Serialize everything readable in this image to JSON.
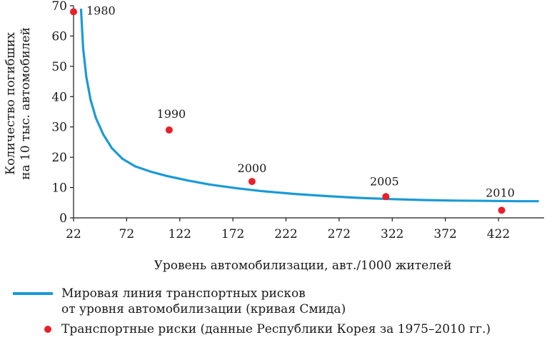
{
  "colors": {
    "curve": "#1a9ad6",
    "points": "#e8202a",
    "axis": "#1a1a1a"
  },
  "chart_data": {
    "type": "scatter",
    "xlabel": "Уровень автомобилизации, авт./1000 жителей",
    "ylabel_line1": "Количество погибших",
    "ylabel_line2": "на 10 тыс. автомобилей",
    "xlim": [
      22,
      465
    ],
    "ylim": [
      0,
      70
    ],
    "xticks": [
      22,
      72,
      122,
      172,
      222,
      272,
      322,
      372,
      422
    ],
    "yticks": [
      0,
      10,
      20,
      30,
      40,
      50,
      60,
      70
    ],
    "series": [
      {
        "name": "Мировая линия транспортных рисков от уровня автомобилизации (кривая Смида)",
        "kind": "line",
        "x": [
          29,
          31,
          34,
          38,
          43,
          50,
          58,
          68,
          80,
          95,
          110,
          130,
          150,
          175,
          200,
          230,
          260,
          290,
          320,
          350,
          380,
          410,
          440,
          460
        ],
        "y": [
          69,
          56,
          46.5,
          39,
          33,
          27.5,
          23,
          19.5,
          17,
          15.2,
          13.8,
          12.3,
          11,
          9.8,
          8.8,
          7.9,
          7.2,
          6.6,
          6.2,
          5.9,
          5.7,
          5.6,
          5.5,
          5.5
        ]
      },
      {
        "name": "Транспортные риски (данные Республики Корея за 1975–2010 гг.)",
        "kind": "points",
        "x": [
          22,
          112,
          190,
          316,
          425
        ],
        "y": [
          68,
          29,
          12,
          7,
          2.5
        ],
        "labels": [
          "1980",
          "1990",
          "2000",
          "2005",
          "2010"
        ]
      }
    ]
  },
  "legend": {
    "curve_line1": "Мировая линия транспортных рисков",
    "curve_line2": "от уровня автомобилизации (кривая Смида)",
    "points": "Транспортные риски (данные Республики Корея за 1975–2010 гг.)"
  }
}
